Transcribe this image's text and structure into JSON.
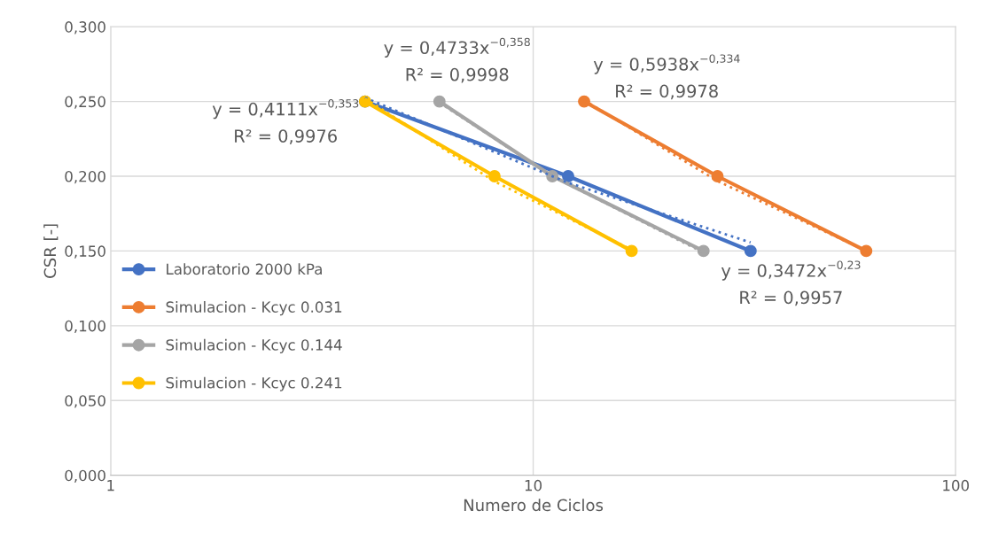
{
  "chart_data": {
    "type": "line",
    "xlabel": "Numero de Ciclos",
    "ylabel": "CSR [-]",
    "log": "x",
    "xlim": [
      1,
      100
    ],
    "xticks": [
      1,
      10,
      100
    ],
    "ylim": [
      0,
      0.3
    ],
    "yticks": [
      {
        "value": 0,
        "label": "0,000"
      },
      {
        "value": 0.05,
        "label": "0,050"
      },
      {
        "value": 0.1,
        "label": "0,100"
      },
      {
        "value": 0.15,
        "label": "0,150"
      },
      {
        "value": 0.2,
        "label": "0,200"
      },
      {
        "value": 0.25,
        "label": "0,250"
      },
      {
        "value": 0.3,
        "label": "0,300"
      }
    ],
    "grid": true,
    "legend": "left",
    "marker": "circle",
    "line_style": "solid",
    "series": [
      {
        "name": "Laboratorio 2000 kPa",
        "color": "#4472c4",
        "x": [
          4,
          12.1,
          32.7
        ],
        "values": [
          0.25,
          0.2,
          0.15
        ]
      },
      {
        "name": "Simulacion - Kcyc 0.031",
        "color": "#ed7d31",
        "x": [
          13.2,
          27.3,
          61.4
        ],
        "values": [
          0.25,
          0.2,
          0.15
        ]
      },
      {
        "name": "Simulacion - Kcyc 0.144",
        "color": "#a5a5a5",
        "x": [
          6.0,
          11.1,
          25.3
        ],
        "values": [
          0.25,
          0.2,
          0.15
        ]
      },
      {
        "name": "Simulacion - Kcyc 0.241",
        "color": "#ffc000",
        "x": [
          4,
          8.1,
          17.1
        ],
        "values": [
          0.25,
          0.2,
          0.15
        ]
      },
      {
        "type": "line",
        "color": "#4472c4",
        "marker": "none",
        "line_style": "dotted",
        "x": [
          4,
          12,
          32.7
        ],
        "values": [
          0.2525,
          0.196,
          0.1557
        ]
      },
      {
        "type": "line",
        "color": "#ed7d31",
        "marker": "none",
        "line_style": "dotted",
        "x": [
          13.2,
          27.3,
          61.4
        ],
        "values": [
          0.2508,
          0.1968,
          0.1501
        ]
      },
      {
        "type": "line",
        "color": "#a5a5a5",
        "marker": "none",
        "line_style": "dotted",
        "x": [
          6.0,
          11.1,
          25.3
        ],
        "values": [
          0.2492,
          0.1999,
          0.1489
        ]
      },
      {
        "type": "line",
        "color": "#ffc000",
        "marker": "none",
        "line_style": "dotted",
        "x": [
          4,
          8.1,
          17.1
        ],
        "values": [
          0.252,
          0.1965,
          0.1509
        ]
      }
    ],
    "annotations": [
      "y = 0,4733x$^{−0,358}$",
      "R² = 0,9998",
      "y = 0,5938x$^{−0,334}$",
      "R² = 0,9978",
      "y = 0,4111x$^{−0,353}$",
      "R² = 0,9976",
      "y = 0,3472x$^{−0,23}$",
      "R² = 0,9957"
    ]
  }
}
